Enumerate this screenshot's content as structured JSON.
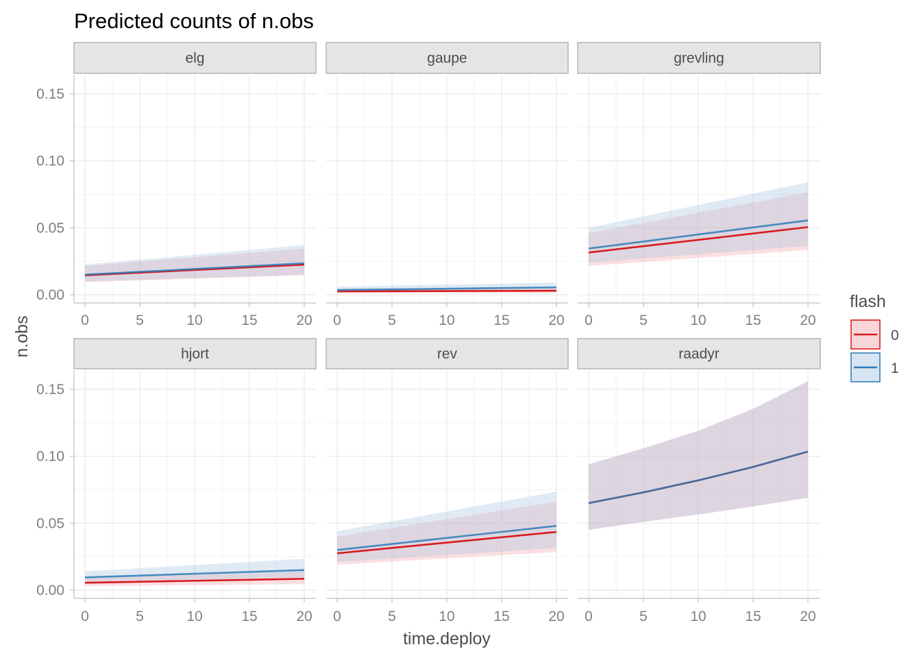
{
  "chart_data": {
    "type": "line",
    "title": "Predicted counts of n.obs",
    "xlabel": "time.deploy",
    "ylabel": "n.obs",
    "xlim": [
      0,
      20
    ],
    "ylim": [
      0,
      0.15
    ],
    "x_ticks": [
      0,
      5,
      10,
      15,
      20
    ],
    "y_ticks": [
      0.0,
      0.05,
      0.1,
      0.15
    ],
    "y_tick_labels": [
      "0.00",
      "0.05",
      "0.10",
      "0.15"
    ],
    "grid": true,
    "legend": {
      "title": "flash",
      "position": "right",
      "entries": [
        {
          "label": "0",
          "color": "#d7191c",
          "fill": "#f4a3a8"
        },
        {
          "label": "1",
          "color": "#2c7bb6",
          "fill": "#a6c4e0"
        }
      ]
    },
    "panels": [
      {
        "name": "elg",
        "series": [
          {
            "name": "0",
            "x": [
              0,
              20
            ],
            "y": [
              0.0145,
              0.0225
            ],
            "lower": [
              0.0095,
              0.0145
            ],
            "upper": [
              0.0215,
              0.0345
            ]
          },
          {
            "name": "1",
            "x": [
              0,
              20
            ],
            "y": [
              0.015,
              0.0235
            ],
            "lower": [
              0.01,
              0.015
            ],
            "upper": [
              0.0225,
              0.037
            ]
          }
        ]
      },
      {
        "name": "gaupe",
        "series": [
          {
            "name": "0",
            "x": [
              0,
              20
            ],
            "y": [
              0.0025,
              0.003
            ],
            "lower": [
              0.0012,
              0.0014
            ],
            "upper": [
              0.0045,
              0.0055
            ]
          },
          {
            "name": "1",
            "x": [
              0,
              20
            ],
            "y": [
              0.0035,
              0.0055
            ],
            "lower": [
              0.002,
              0.003
            ],
            "upper": [
              0.006,
              0.009
            ]
          }
        ]
      },
      {
        "name": "grevling",
        "series": [
          {
            "name": "0",
            "x": [
              0,
              20
            ],
            "y": [
              0.0315,
              0.0505
            ],
            "lower": [
              0.0215,
              0.0335
            ],
            "upper": [
              0.046,
              0.0765
            ]
          },
          {
            "name": "1",
            "x": [
              0,
              20
            ],
            "y": [
              0.0345,
              0.0555
            ],
            "lower": [
              0.024,
              0.0365
            ],
            "upper": [
              0.05,
              0.084
            ]
          }
        ]
      },
      {
        "name": "hjort",
        "series": [
          {
            "name": "0",
            "x": [
              0,
              20
            ],
            "y": [
              0.0055,
              0.0085
            ],
            "lower": [
              0.003,
              0.0045
            ],
            "upper": [
              0.009,
              0.014
            ]
          },
          {
            "name": "1",
            "x": [
              0,
              20
            ],
            "y": [
              0.0095,
              0.015
            ],
            "lower": [
              0.006,
              0.0095
            ],
            "upper": [
              0.014,
              0.0235
            ]
          }
        ]
      },
      {
        "name": "rev",
        "series": [
          {
            "name": "0",
            "x": [
              0,
              20
            ],
            "y": [
              0.0275,
              0.0435
            ],
            "lower": [
              0.019,
              0.0285
            ],
            "upper": [
              0.04,
              0.066
            ]
          },
          {
            "name": "1",
            "x": [
              0,
              20
            ],
            "y": [
              0.03,
              0.048
            ],
            "lower": [
              0.021,
              0.0315
            ],
            "upper": [
              0.044,
              0.0735
            ]
          }
        ]
      },
      {
        "name": "raadyr",
        "series": [
          {
            "name": "0",
            "x": [
              0,
              5,
              10,
              15,
              20
            ],
            "y": [
              0.065,
              0.073,
              0.082,
              0.092,
              0.1035
            ],
            "lower": [
              0.045,
              0.051,
              0.0565,
              0.0625,
              0.069
            ],
            "upper": [
              0.094,
              0.106,
              0.119,
              0.1355,
              0.156
            ]
          },
          {
            "name": "1",
            "x": [
              0,
              5,
              10,
              15,
              20
            ],
            "y": [
              0.065,
              0.073,
              0.082,
              0.092,
              0.1035
            ],
            "lower": [
              0.045,
              0.051,
              0.0565,
              0.0625,
              0.069
            ],
            "upper": [
              0.094,
              0.106,
              0.119,
              0.1355,
              0.156
            ]
          }
        ]
      }
    ]
  }
}
